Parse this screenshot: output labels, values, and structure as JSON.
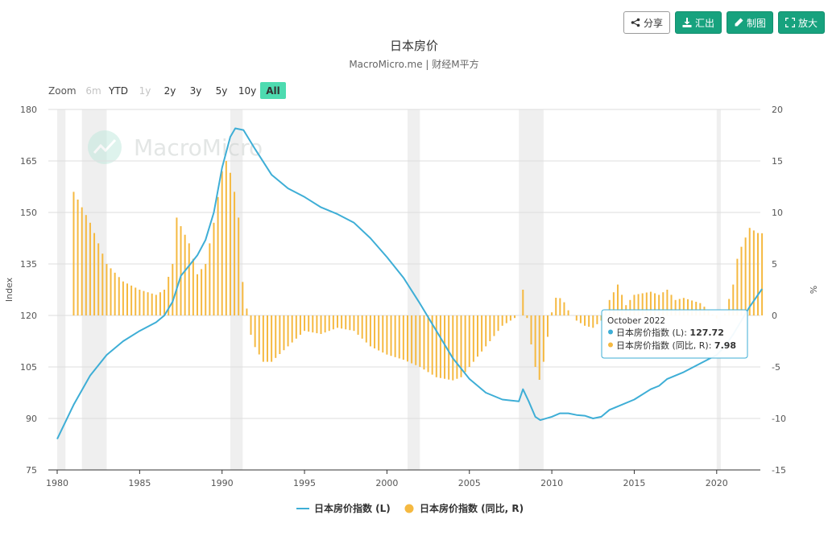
{
  "toolbar": {
    "share": "分享",
    "export": "汇出",
    "draw": "制图",
    "enlarge": "放大"
  },
  "zoom": {
    "label": "Zoom",
    "options": [
      "6m",
      "YTD",
      "1y",
      "2y",
      "3y",
      "5y",
      "10y",
      "All"
    ],
    "disabled": [
      "6m",
      "1y"
    ],
    "selected": "All"
  },
  "watermark": "MacroMicro",
  "colors": {
    "line": "#3eaed6",
    "bar": "#f5b941",
    "recession": "#efefef",
    "zoom_active": "#4ddbb0",
    "tooltip_border": "#3eaed6"
  },
  "tooltip": {
    "date": "October 2022",
    "line_label": "日本房价指数 (L): ",
    "line_value": "127.72",
    "bar_label": "日本房价指数 (同比, R): ",
    "bar_value": "7.98"
  },
  "chart_data": {
    "type": "line+bar",
    "title": "日本房价",
    "subtitle": "MacroMicro.me | 财经M平方",
    "x_ticks": [
      "1980",
      "1985",
      "1990",
      "1995",
      "2000",
      "2005",
      "2010",
      "2015",
      "2020"
    ],
    "x_range": [
      1979.5,
      2023.0
    ],
    "y_left": {
      "label": "Index",
      "range": [
        75,
        180
      ],
      "ticks": [
        "75",
        "90",
        "105",
        "120",
        "135",
        "150",
        "165",
        "180"
      ]
    },
    "y_right": {
      "label": "%",
      "range": [
        -15,
        20
      ],
      "ticks": [
        "-15",
        "-10",
        "-5",
        "0",
        "5",
        "10",
        "15",
        "20"
      ]
    },
    "recessions": [
      [
        1980.0,
        1980.5
      ],
      [
        1981.5,
        1983.0
      ],
      [
        1990.5,
        1991.25
      ],
      [
        2001.25,
        2002.0
      ],
      [
        2008.0,
        2009.5
      ],
      [
        2020.0,
        2020.25
      ]
    ],
    "series": [
      {
        "name": "日本房价指数 (L)",
        "axis": "left",
        "kind": "line",
        "points": [
          [
            1980.0,
            84
          ],
          [
            1981.0,
            94
          ],
          [
            1982.0,
            102.5
          ],
          [
            1983.0,
            108.5
          ],
          [
            1984.0,
            112.5
          ],
          [
            1985.0,
            115.5
          ],
          [
            1986.0,
            118
          ],
          [
            1986.5,
            120
          ],
          [
            1987.0,
            124
          ],
          [
            1987.5,
            131.5
          ],
          [
            1988.0,
            134.5
          ],
          [
            1988.5,
            137.5
          ],
          [
            1989.0,
            142
          ],
          [
            1989.5,
            150
          ],
          [
            1990.0,
            163
          ],
          [
            1990.5,
            172
          ],
          [
            1990.8,
            174.5
          ],
          [
            1991.3,
            174
          ],
          [
            1992.0,
            168.5
          ],
          [
            1993.0,
            161
          ],
          [
            1994.0,
            157
          ],
          [
            1995.0,
            154.5
          ],
          [
            1996.0,
            151.5
          ],
          [
            1997.0,
            149.5
          ],
          [
            1998.0,
            147
          ],
          [
            1999.0,
            142.5
          ],
          [
            2000.0,
            137
          ],
          [
            2001.0,
            131
          ],
          [
            2002.0,
            123.5
          ],
          [
            2003.0,
            115.5
          ],
          [
            2004.0,
            107.5
          ],
          [
            2005.0,
            101.5
          ],
          [
            2006.0,
            97.5
          ],
          [
            2007.0,
            95.5
          ],
          [
            2008.0,
            95
          ],
          [
            2008.25,
            98.5
          ],
          [
            2008.6,
            95
          ],
          [
            2009.0,
            90.5
          ],
          [
            2009.3,
            89.5
          ],
          [
            2010.0,
            90.5
          ],
          [
            2010.5,
            91.5
          ],
          [
            2011.0,
            91.5
          ],
          [
            2011.5,
            91
          ],
          [
            2012.0,
            90.8
          ],
          [
            2012.5,
            90
          ],
          [
            2013.0,
            90.5
          ],
          [
            2013.5,
            92.5
          ],
          [
            2014.0,
            93.5
          ],
          [
            2015.0,
            95.5
          ],
          [
            2016.0,
            98.5
          ],
          [
            2016.5,
            99.5
          ],
          [
            2017.0,
            101.5
          ],
          [
            2018.0,
            103.5
          ],
          [
            2019.0,
            106
          ],
          [
            2020.0,
            108.5
          ],
          [
            2020.5,
            111
          ],
          [
            2021.0,
            114.5
          ],
          [
            2021.5,
            118.5
          ],
          [
            2022.0,
            122.5
          ],
          [
            2022.5,
            126
          ],
          [
            2022.75,
            127.72
          ]
        ]
      },
      {
        "name": "日本房价指数 (同比, R)",
        "axis": "right",
        "kind": "bar",
        "anchors": [
          [
            1980.0,
            0
          ],
          [
            1980.95,
            0
          ],
          [
            1981.0,
            12
          ],
          [
            1982.0,
            9
          ],
          [
            1983.0,
            5
          ],
          [
            1984.0,
            3.3
          ],
          [
            1985.0,
            2.5
          ],
          [
            1986.0,
            2
          ],
          [
            1986.5,
            2.5
          ],
          [
            1987.0,
            5
          ],
          [
            1987.25,
            9.5
          ],
          [
            1988.0,
            7
          ],
          [
            1988.5,
            4
          ],
          [
            1989.0,
            5
          ],
          [
            1989.5,
            9
          ],
          [
            1990.0,
            14
          ],
          [
            1990.3,
            15.2
          ],
          [
            1990.7,
            12.5
          ],
          [
            1991.0,
            9.5
          ],
          [
            1991.3,
            2
          ],
          [
            1991.6,
            0
          ],
          [
            1991.8,
            -2.5
          ],
          [
            1992.5,
            -4.5
          ],
          [
            1993.0,
            -4.5
          ],
          [
            1994.0,
            -3
          ],
          [
            1995.0,
            -1.5
          ],
          [
            1996.0,
            -1.8
          ],
          [
            1997.0,
            -1.2
          ],
          [
            1998.0,
            -1.5
          ],
          [
            1999.0,
            -3
          ],
          [
            2000.0,
            -3.8
          ],
          [
            2001.0,
            -4.3
          ],
          [
            2002.0,
            -5
          ],
          [
            2003.0,
            -6
          ],
          [
            2004.0,
            -6.3
          ],
          [
            2004.5,
            -6
          ],
          [
            2005.0,
            -5
          ],
          [
            2006.0,
            -3
          ],
          [
            2007.0,
            -1
          ],
          [
            2008.0,
            0
          ],
          [
            2008.2,
            3
          ],
          [
            2008.4,
            1
          ],
          [
            2008.6,
            -1.5
          ],
          [
            2009.0,
            -5
          ],
          [
            2009.3,
            -6.5
          ],
          [
            2009.6,
            -3.5
          ],
          [
            2010.0,
            0.3
          ],
          [
            2010.3,
            2
          ],
          [
            2010.8,
            1.2
          ],
          [
            2011.0,
            0.5
          ],
          [
            2011.5,
            -0.5
          ],
          [
            2012.0,
            -1
          ],
          [
            2012.5,
            -1.2
          ],
          [
            2013.0,
            -0.5
          ],
          [
            2013.5,
            1.5
          ],
          [
            2014.0,
            3
          ],
          [
            2014.5,
            1
          ],
          [
            2015.0,
            2
          ],
          [
            2016.0,
            2.3
          ],
          [
            2016.5,
            2
          ],
          [
            2017.0,
            2.5
          ],
          [
            2017.5,
            1.5
          ],
          [
            2018.0,
            1.7
          ],
          [
            2019.0,
            1.2
          ],
          [
            2019.5,
            0.5
          ],
          [
            2020.0,
            -0.3
          ],
          [
            2020.5,
            0.2
          ],
          [
            2021.0,
            3
          ],
          [
            2021.3,
            6
          ],
          [
            2021.6,
            7
          ],
          [
            2022.0,
            8.5
          ],
          [
            2022.5,
            8
          ],
          [
            2022.75,
            7.98
          ]
        ]
      }
    ],
    "legend": [
      "日本房价指数 (L)",
      "日本房价指数 (同比, R)"
    ]
  }
}
